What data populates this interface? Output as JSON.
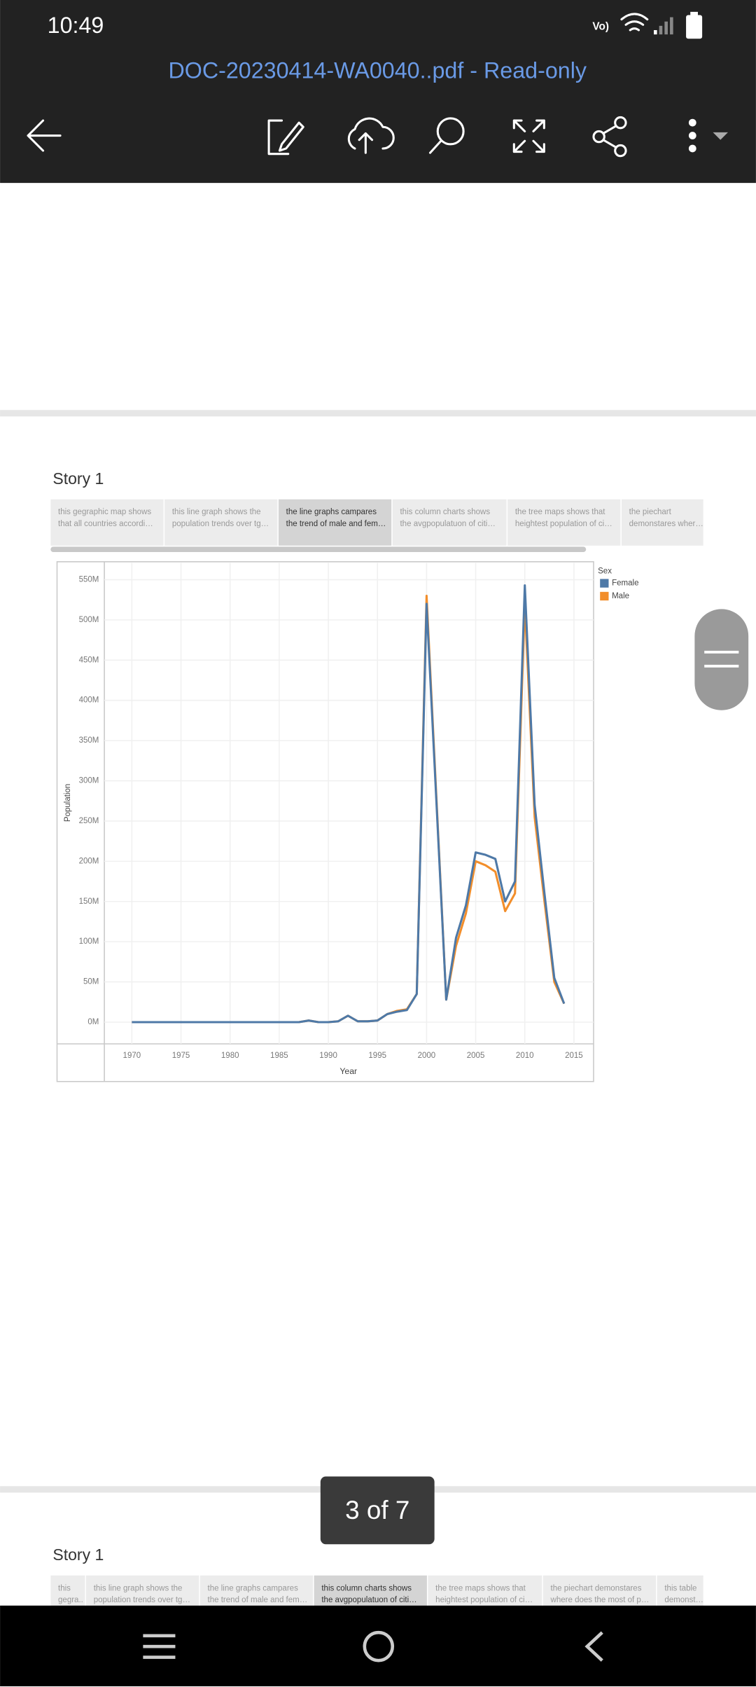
{
  "status_bar": {
    "time": "10:49"
  },
  "toolbar": {
    "title": "DOC-20230414-WA0040..pdf - Read-only"
  },
  "story1": {
    "title": "Story 1",
    "selected": 2,
    "tabs": [
      [
        "this gegraphic map shows",
        "that all countries accordi…"
      ],
      [
        "this line graph shows the",
        "population trends over tg…"
      ],
      [
        "the line graphs campares",
        "the trend of male and fem…"
      ],
      [
        "this column charts shows",
        "the avgpopulatuon of citi…"
      ],
      [
        "the tree maps shows that",
        "heightest population of ci…"
      ],
      [
        "the piechart",
        "demonstares wher…"
      ]
    ]
  },
  "chart_data": {
    "type": "line",
    "xlabel": "Year",
    "ylabel": "Population",
    "legend_title": "Sex",
    "x": [
      1970,
      1971,
      1972,
      1973,
      1974,
      1975,
      1976,
      1977,
      1978,
      1979,
      1980,
      1981,
      1982,
      1983,
      1984,
      1985,
      1986,
      1987,
      1988,
      1989,
      1990,
      1991,
      1992,
      1993,
      1994,
      1995,
      1996,
      1997,
      1998,
      1999,
      2000,
      2001,
      2002,
      2003,
      2004,
      2005,
      2006,
      2007,
      2008,
      2009,
      2010,
      2011,
      2012,
      2013,
      2014
    ],
    "series": [
      {
        "name": "Female",
        "color": "#4e79a7",
        "values": [
          0,
          0,
          0,
          0,
          0,
          0,
          0,
          0,
          0,
          0,
          0,
          0,
          0,
          0,
          0,
          0,
          0,
          0,
          2,
          0,
          0,
          1,
          8,
          1,
          1,
          2,
          10,
          13,
          15,
          35,
          520,
          274,
          28,
          105,
          145,
          211,
          208,
          203,
          150,
          175,
          543,
          270,
          160,
          55,
          23
        ]
      },
      {
        "name": "Male",
        "color": "#f28e2b",
        "values": [
          0,
          0,
          0,
          0,
          0,
          0,
          0,
          0,
          0,
          0,
          0,
          0,
          0,
          0,
          0,
          0,
          0,
          0,
          2,
          0,
          0,
          1,
          8,
          1,
          1,
          2,
          10,
          14,
          16,
          35,
          530,
          279,
          28,
          95,
          135,
          200,
          195,
          187,
          138,
          160,
          520,
          255,
          150,
          50,
          23
        ]
      }
    ],
    "xlim": [
      1967.2,
      2017
    ],
    "xticks": [
      1970,
      1975,
      1980,
      1985,
      1990,
      1995,
      2000,
      2005,
      2010,
      2015
    ],
    "ylim": [
      -27,
      571
    ],
    "yticks": [
      {
        "value": 0,
        "label": "0M"
      },
      {
        "value": 50,
        "label": "50M"
      },
      {
        "value": 100,
        "label": "100M"
      },
      {
        "value": 150,
        "label": "150M"
      },
      {
        "value": 200,
        "label": "200M"
      },
      {
        "value": 250,
        "label": "250M"
      },
      {
        "value": 300,
        "label": "300M"
      },
      {
        "value": 350,
        "label": "350M"
      },
      {
        "value": 400,
        "label": "400M"
      },
      {
        "value": 450,
        "label": "450M"
      },
      {
        "value": 500,
        "label": "500M"
      },
      {
        "value": 550,
        "label": "550M"
      }
    ],
    "grid": true
  },
  "page_indicator": "3 of 7",
  "story2": {
    "title": "Story 1",
    "selected": 3,
    "tabs": [
      [
        "this",
        "gegra.."
      ],
      [
        "this line graph shows the",
        "population trends over tg…"
      ],
      [
        "the line graphs campares",
        "the trend of male and fem…"
      ],
      [
        "this column charts shows",
        "the avgpopulatuon of citi…"
      ],
      [
        "the tree maps shows that",
        "heightest population of ci…"
      ],
      [
        "the piechart demonstares",
        "where does the most of p…"
      ],
      [
        "this table",
        "demonst…"
      ]
    ]
  }
}
